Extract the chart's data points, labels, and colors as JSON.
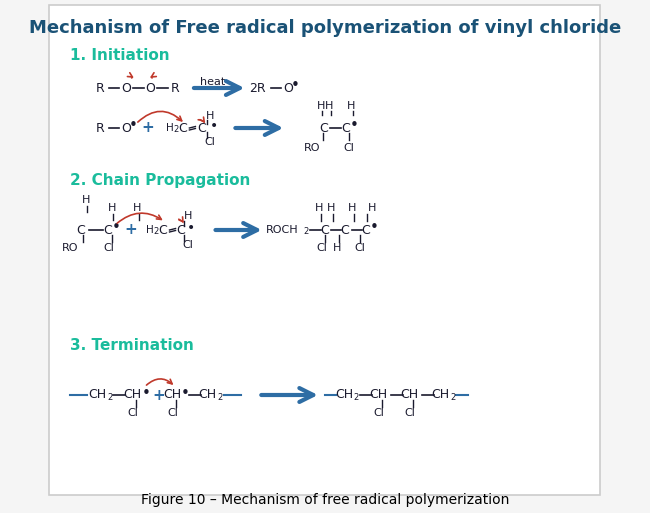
{
  "title": "Mechanism of Free radical polymerization of vinyl chloride",
  "title_color": "#1a5276",
  "title_fontsize": 13,
  "section1_label": "1. Initiation",
  "section2_label": "2. Chain Propagation",
  "section3_label": "3. Termination",
  "section_color": "#1abc9c",
  "section_fontsize": 11,
  "bg_color": "#f5f5f5",
  "border_color": "#cccccc",
  "body_color": "#1a1a2e",
  "blue_arrow_color": "#2e6da4",
  "red_curve_color": "#c0392b",
  "figure_caption": "Figure 10 – Mechanism of free radical polymerization",
  "caption_fontsize": 10
}
